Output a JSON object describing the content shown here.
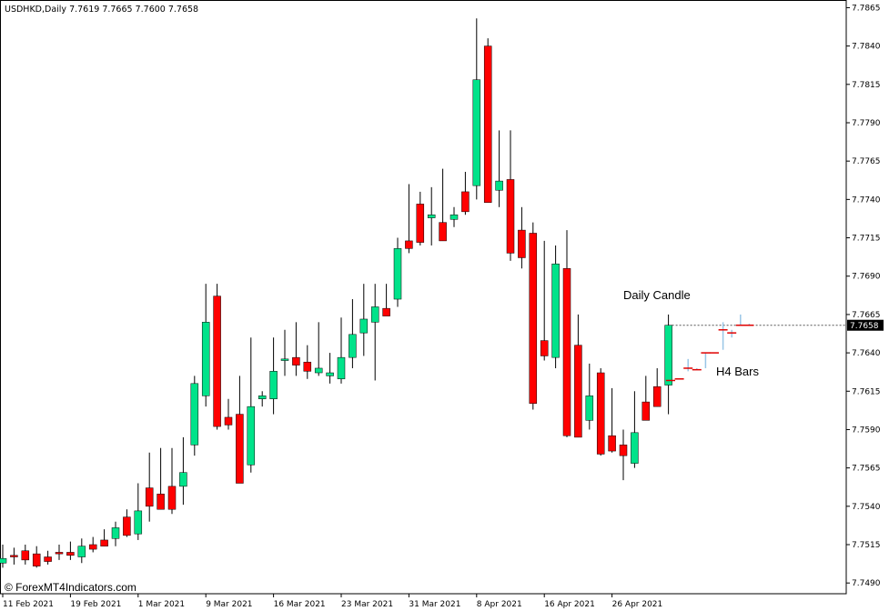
{
  "chart_data": {
    "type": "candlestick",
    "symbol_header": "USDHKD,Daily  7.7619 7.7665 7.7600 7.7658",
    "current_price_label": "7.7658",
    "ylim": [
      7.7483,
      7.787
    ],
    "y_ticks": [
      "7.7865",
      "7.7840",
      "7.7815",
      "7.7790",
      "7.7765",
      "7.7740",
      "7.7715",
      "7.7690",
      "7.7665",
      "7.7640",
      "7.7615",
      "7.7590",
      "7.7565",
      "7.7540",
      "7.7515",
      "7.7490"
    ],
    "x_ticks": [
      "11 Feb 2021",
      "19 Feb 2021",
      "1 Mar 2021",
      "9 Mar 2021",
      "16 Mar 2021",
      "23 Mar 2021",
      "31 Mar 2021",
      "8 Apr 2021",
      "16 Apr 2021",
      "26 Apr 2021"
    ],
    "annotations": {
      "daily": "Daily Candle",
      "h4": "H4 Bars"
    },
    "watermark": "© ForexMT4Indicators.com",
    "colors": {
      "bull": "#00e38a",
      "bear": "#ff0000",
      "wick": "#000000",
      "h4_red": "#e00000",
      "h4_blue": "#99c6e6"
    },
    "candles": [
      {
        "o": 7.7503,
        "h": 7.7515,
        "l": 7.75,
        "c": 7.7506
      },
      {
        "o": 7.7508,
        "h": 7.7513,
        "l": 7.7502,
        "c": 7.7507
      },
      {
        "o": 7.7511,
        "h": 7.7515,
        "l": 7.7502,
        "c": 7.7505
      },
      {
        "o": 7.7509,
        "h": 7.7514,
        "l": 7.75,
        "c": 7.7501
      },
      {
        "o": 7.7507,
        "h": 7.7511,
        "l": 7.7502,
        "c": 7.7504
      },
      {
        "o": 7.751,
        "h": 7.7515,
        "l": 7.7505,
        "c": 7.7509
      },
      {
        "o": 7.751,
        "h": 7.7517,
        "l": 7.7505,
        "c": 7.7508
      },
      {
        "o": 7.7507,
        "h": 7.7519,
        "l": 7.7503,
        "c": 7.7514
      },
      {
        "o": 7.7515,
        "h": 7.752,
        "l": 7.751,
        "c": 7.7512
      },
      {
        "o": 7.7518,
        "h": 7.7525,
        "l": 7.7514,
        "c": 7.7514
      },
      {
        "o": 7.7519,
        "h": 7.753,
        "l": 7.7514,
        "c": 7.7526
      },
      {
        "o": 7.7533,
        "h": 7.7538,
        "l": 7.752,
        "c": 7.7521
      },
      {
        "o": 7.7522,
        "h": 7.7555,
        "l": 7.7518,
        "c": 7.7537
      },
      {
        "o": 7.7552,
        "h": 7.7575,
        "l": 7.753,
        "c": 7.754
      },
      {
        "o": 7.7548,
        "h": 7.7578,
        "l": 7.7538,
        "c": 7.7538
      },
      {
        "o": 7.7553,
        "h": 7.7578,
        "l": 7.7535,
        "c": 7.7538
      },
      {
        "o": 7.7553,
        "h": 7.7585,
        "l": 7.7541,
        "c": 7.7562
      },
      {
        "o": 7.758,
        "h": 7.7625,
        "l": 7.7573,
        "c": 7.762
      },
      {
        "o": 7.7612,
        "h": 7.7685,
        "l": 7.7605,
        "c": 7.766
      },
      {
        "o": 7.7677,
        "h": 7.7685,
        "l": 7.759,
        "c": 7.7592
      },
      {
        "o": 7.7598,
        "h": 7.761,
        "l": 7.759,
        "c": 7.7593
      },
      {
        "o": 7.76,
        "h": 7.7625,
        "l": 7.7558,
        "c": 7.7555
      },
      {
        "o": 7.7567,
        "h": 7.765,
        "l": 7.7562,
        "c": 7.7605
      },
      {
        "o": 7.761,
        "h": 7.7615,
        "l": 7.7605,
        "c": 7.7612
      },
      {
        "o": 7.761,
        "h": 7.765,
        "l": 7.76,
        "c": 7.7628
      },
      {
        "o": 7.7635,
        "h": 7.7655,
        "l": 7.7625,
        "c": 7.7636
      },
      {
        "o": 7.7637,
        "h": 7.766,
        "l": 7.7625,
        "c": 7.7632
      },
      {
        "o": 7.7634,
        "h": 7.7645,
        "l": 7.7623,
        "c": 7.7628
      },
      {
        "o": 7.7627,
        "h": 7.766,
        "l": 7.7625,
        "c": 7.763
      },
      {
        "o": 7.7625,
        "h": 7.764,
        "l": 7.762,
        "c": 7.7627
      },
      {
        "o": 7.7623,
        "h": 7.7663,
        "l": 7.762,
        "c": 7.7637
      },
      {
        "o": 7.7637,
        "h": 7.7675,
        "l": 7.763,
        "c": 7.7652
      },
      {
        "o": 7.7653,
        "h": 7.7685,
        "l": 7.7638,
        "c": 7.7662
      },
      {
        "o": 7.766,
        "h": 7.7685,
        "l": 7.7622,
        "c": 7.767
      },
      {
        "o": 7.7669,
        "h": 7.7685,
        "l": 7.7665,
        "c": 7.7664
      },
      {
        "o": 7.7675,
        "h": 7.7715,
        "l": 7.767,
        "c": 7.7708
      },
      {
        "o": 7.7713,
        "h": 7.775,
        "l": 7.7705,
        "c": 7.7708
      },
      {
        "o": 7.7737,
        "h": 7.7745,
        "l": 7.771,
        "c": 7.7712
      },
      {
        "o": 7.7728,
        "h": 7.7748,
        "l": 7.771,
        "c": 7.773
      },
      {
        "o": 7.7725,
        "h": 7.776,
        "l": 7.7713,
        "c": 7.7713
      },
      {
        "o": 7.7727,
        "h": 7.7735,
        "l": 7.7722,
        "c": 7.773
      },
      {
        "o": 7.7745,
        "h": 7.7758,
        "l": 7.773,
        "c": 7.7732
      },
      {
        "o": 7.7749,
        "h": 7.7858,
        "l": 7.774,
        "c": 7.7818
      },
      {
        "o": 7.784,
        "h": 7.7845,
        "l": 7.7738,
        "c": 7.7738
      },
      {
        "o": 7.7746,
        "h": 7.7785,
        "l": 7.7735,
        "c": 7.7752
      },
      {
        "o": 7.7753,
        "h": 7.7785,
        "l": 7.77,
        "c": 7.7705
      },
      {
        "o": 7.772,
        "h": 7.7735,
        "l": 7.7695,
        "c": 7.7702
      },
      {
        "o": 7.7718,
        "h": 7.7725,
        "l": 7.7603,
        "c": 7.7607
      },
      {
        "o": 7.7648,
        "h": 7.7713,
        "l": 7.7635,
        "c": 7.7638
      },
      {
        "o": 7.7637,
        "h": 7.771,
        "l": 7.763,
        "c": 7.7698
      },
      {
        "o": 7.7695,
        "h": 7.772,
        "l": 7.7585,
        "c": 7.7586
      },
      {
        "o": 7.7645,
        "h": 7.7665,
        "l": 7.7585,
        "c": 7.7585
      },
      {
        "o": 7.7596,
        "h": 7.7633,
        "l": 7.759,
        "c": 7.7612
      },
      {
        "o": 7.7627,
        "h": 7.763,
        "l": 7.7573,
        "c": 7.7574
      },
      {
        "o": 7.7586,
        "h": 7.7617,
        "l": 7.7575,
        "c": 7.7576
      },
      {
        "o": 7.758,
        "h": 7.759,
        "l": 7.7557,
        "c": 7.7573
      },
      {
        "o": 7.7568,
        "h": 7.7615,
        "l": 7.7565,
        "c": 7.7588
      },
      {
        "o": 7.7608,
        "h": 7.7625,
        "l": 7.7598,
        "c": 7.7596
      },
      {
        "o": 7.7618,
        "h": 7.763,
        "l": 7.7605,
        "c": 7.7605
      },
      {
        "o": 7.7619,
        "h": 7.7665,
        "l": 7.76,
        "c": 7.7658
      }
    ],
    "h4_bars": [
      {
        "o": 7.7622,
        "h": 7.7622,
        "l": 7.7622,
        "c": 7.7622
      },
      {
        "o": 7.7623,
        "h": 7.7623,
        "l": 7.7623,
        "c": 7.7623
      },
      {
        "o": 7.7628,
        "h": 7.7636,
        "l": 7.7628,
        "c": 7.763
      },
      {
        "o": 7.7629,
        "h": 7.763,
        "l": 7.7629,
        "c": 7.7629
      },
      {
        "o": 7.763,
        "h": 7.764,
        "l": 7.763,
        "c": 7.764
      },
      {
        "o": 7.764,
        "h": 7.764,
        "l": 7.764,
        "c": 7.764
      },
      {
        "o": 7.7642,
        "h": 7.766,
        "l": 7.7642,
        "c": 7.7655
      },
      {
        "o": 7.7652,
        "h": 7.7655,
        "l": 7.765,
        "c": 7.7653
      },
      {
        "o": 7.7658,
        "h": 7.7665,
        "l": 7.7658,
        "c": 7.7658
      },
      {
        "o": 7.7658,
        "h": 7.7659,
        "l": 7.7658,
        "c": 7.7658
      }
    ]
  }
}
